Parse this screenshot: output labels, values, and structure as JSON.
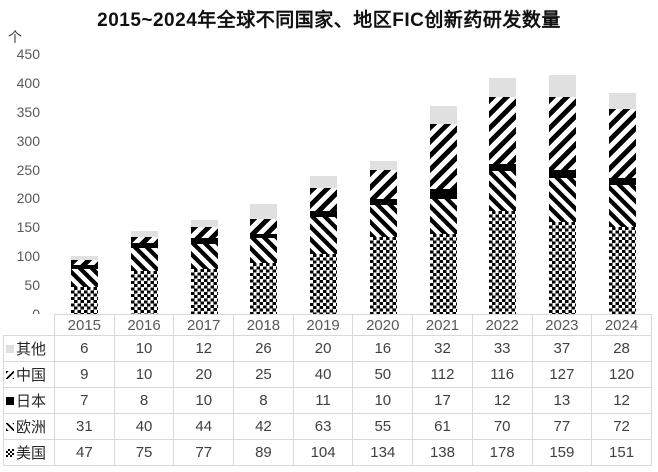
{
  "chart_data": {
    "type": "bar",
    "stacked": true,
    "title": "2015~2024年全球不同国家、地区FIC创新药研发数量",
    "unit_label": "个",
    "categories": [
      "2015",
      "2016",
      "2017",
      "2018",
      "2019",
      "2020",
      "2021",
      "2022",
      "2023",
      "2024"
    ],
    "series": [
      {
        "name": "美国",
        "pattern": "checkerboard",
        "values": [
          47,
          75,
          77,
          89,
          104,
          134,
          138,
          178,
          159,
          151
        ]
      },
      {
        "name": "欧洲",
        "pattern": "diagonal-down",
        "values": [
          31,
          40,
          44,
          42,
          63,
          55,
          61,
          70,
          77,
          72
        ]
      },
      {
        "name": "日本",
        "pattern": "solid-black",
        "values": [
          7,
          8,
          10,
          8,
          11,
          10,
          17,
          12,
          13,
          12
        ]
      },
      {
        "name": "中国",
        "pattern": "diagonal-up",
        "values": [
          9,
          10,
          20,
          25,
          40,
          50,
          112,
          116,
          127,
          120
        ]
      },
      {
        "name": "其他",
        "pattern": "light-gray",
        "values": [
          6,
          10,
          12,
          26,
          20,
          16,
          32,
          33,
          37,
          28
        ]
      }
    ],
    "series_stack_order": "bottom-to-top",
    "table_row_order": [
      "其他",
      "中国",
      "日本",
      "欧洲",
      "美国"
    ],
    "y_ticks": [
      0,
      50,
      100,
      150,
      200,
      250,
      300,
      350,
      400,
      450
    ],
    "ylim": [
      0,
      450
    ],
    "grid": false,
    "legend_position": "table-below-chart",
    "colors": {
      "other_fill": "#e0e0e0",
      "ink": "#000000",
      "table_border": "#d9d9d9",
      "axis_text": "#595959",
      "value_text": "#404040"
    }
  }
}
